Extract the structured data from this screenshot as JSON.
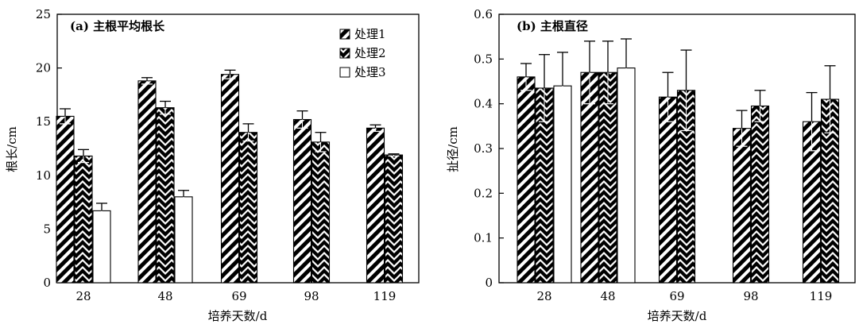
{
  "chart_data": [
    {
      "panel": "a",
      "type": "bar",
      "title": "(a)  主根平均根长",
      "xlabel": "培养天数/d",
      "ylabel": "根长/cm",
      "ylim": [
        0,
        25
      ],
      "yticks": [
        0,
        5,
        10,
        15,
        20,
        25
      ],
      "categories": [
        "28",
        "48",
        "69",
        "98",
        "119"
      ],
      "series": [
        {
          "name": "处理1",
          "pattern": "hatch-back",
          "values": [
            15.5,
            18.8,
            19.4,
            15.2,
            14.4
          ],
          "errors": [
            0.7,
            0.3,
            0.4,
            0.8,
            0.3
          ]
        },
        {
          "name": "处理2",
          "pattern": "hatch-chevron",
          "values": [
            11.8,
            16.3,
            14.0,
            13.1,
            11.9
          ],
          "errors": [
            0.6,
            0.6,
            0.8,
            0.9,
            0.1
          ]
        },
        {
          "name": "处理3",
          "pattern": "open",
          "values": [
            6.7,
            8.0,
            null,
            null,
            null
          ],
          "errors": [
            0.7,
            0.6,
            null,
            null,
            null
          ]
        }
      ],
      "legend": {
        "position": "top-right",
        "entries": [
          "处理1",
          "处理2",
          "处理3"
        ]
      },
      "grid": false
    },
    {
      "panel": "b",
      "type": "bar",
      "title": "(b)  主根直径",
      "xlabel": "培养天数/d",
      "ylabel": "扯径/cm",
      "ylim": [
        0,
        0.6
      ],
      "yticks": [
        "0",
        "0.1",
        "0.2",
        "0.3",
        "0.4",
        "0.5",
        "0.6"
      ],
      "categories": [
        "28",
        "48",
        "69",
        "98",
        "119"
      ],
      "series": [
        {
          "pattern": "hatch-back",
          "values": [
            0.46,
            0.47,
            0.415,
            0.345,
            0.36
          ],
          "errors": [
            0.03,
            0.07,
            0.055,
            0.04,
            0.065
          ]
        },
        {
          "pattern": "hatch-chevron",
          "values": [
            0.435,
            0.47,
            0.43,
            0.395,
            0.41
          ],
          "errors": [
            0.075,
            0.07,
            0.09,
            0.035,
            0.075
          ]
        },
        {
          "pattern": "open",
          "values": [
            0.44,
            0.48,
            null,
            null,
            null
          ],
          "errors": [
            0.075,
            0.065,
            null,
            null,
            null
          ]
        }
      ],
      "grid": false
    }
  ],
  "colors": {
    "ink": "#000000",
    "background": "#ffffff"
  }
}
